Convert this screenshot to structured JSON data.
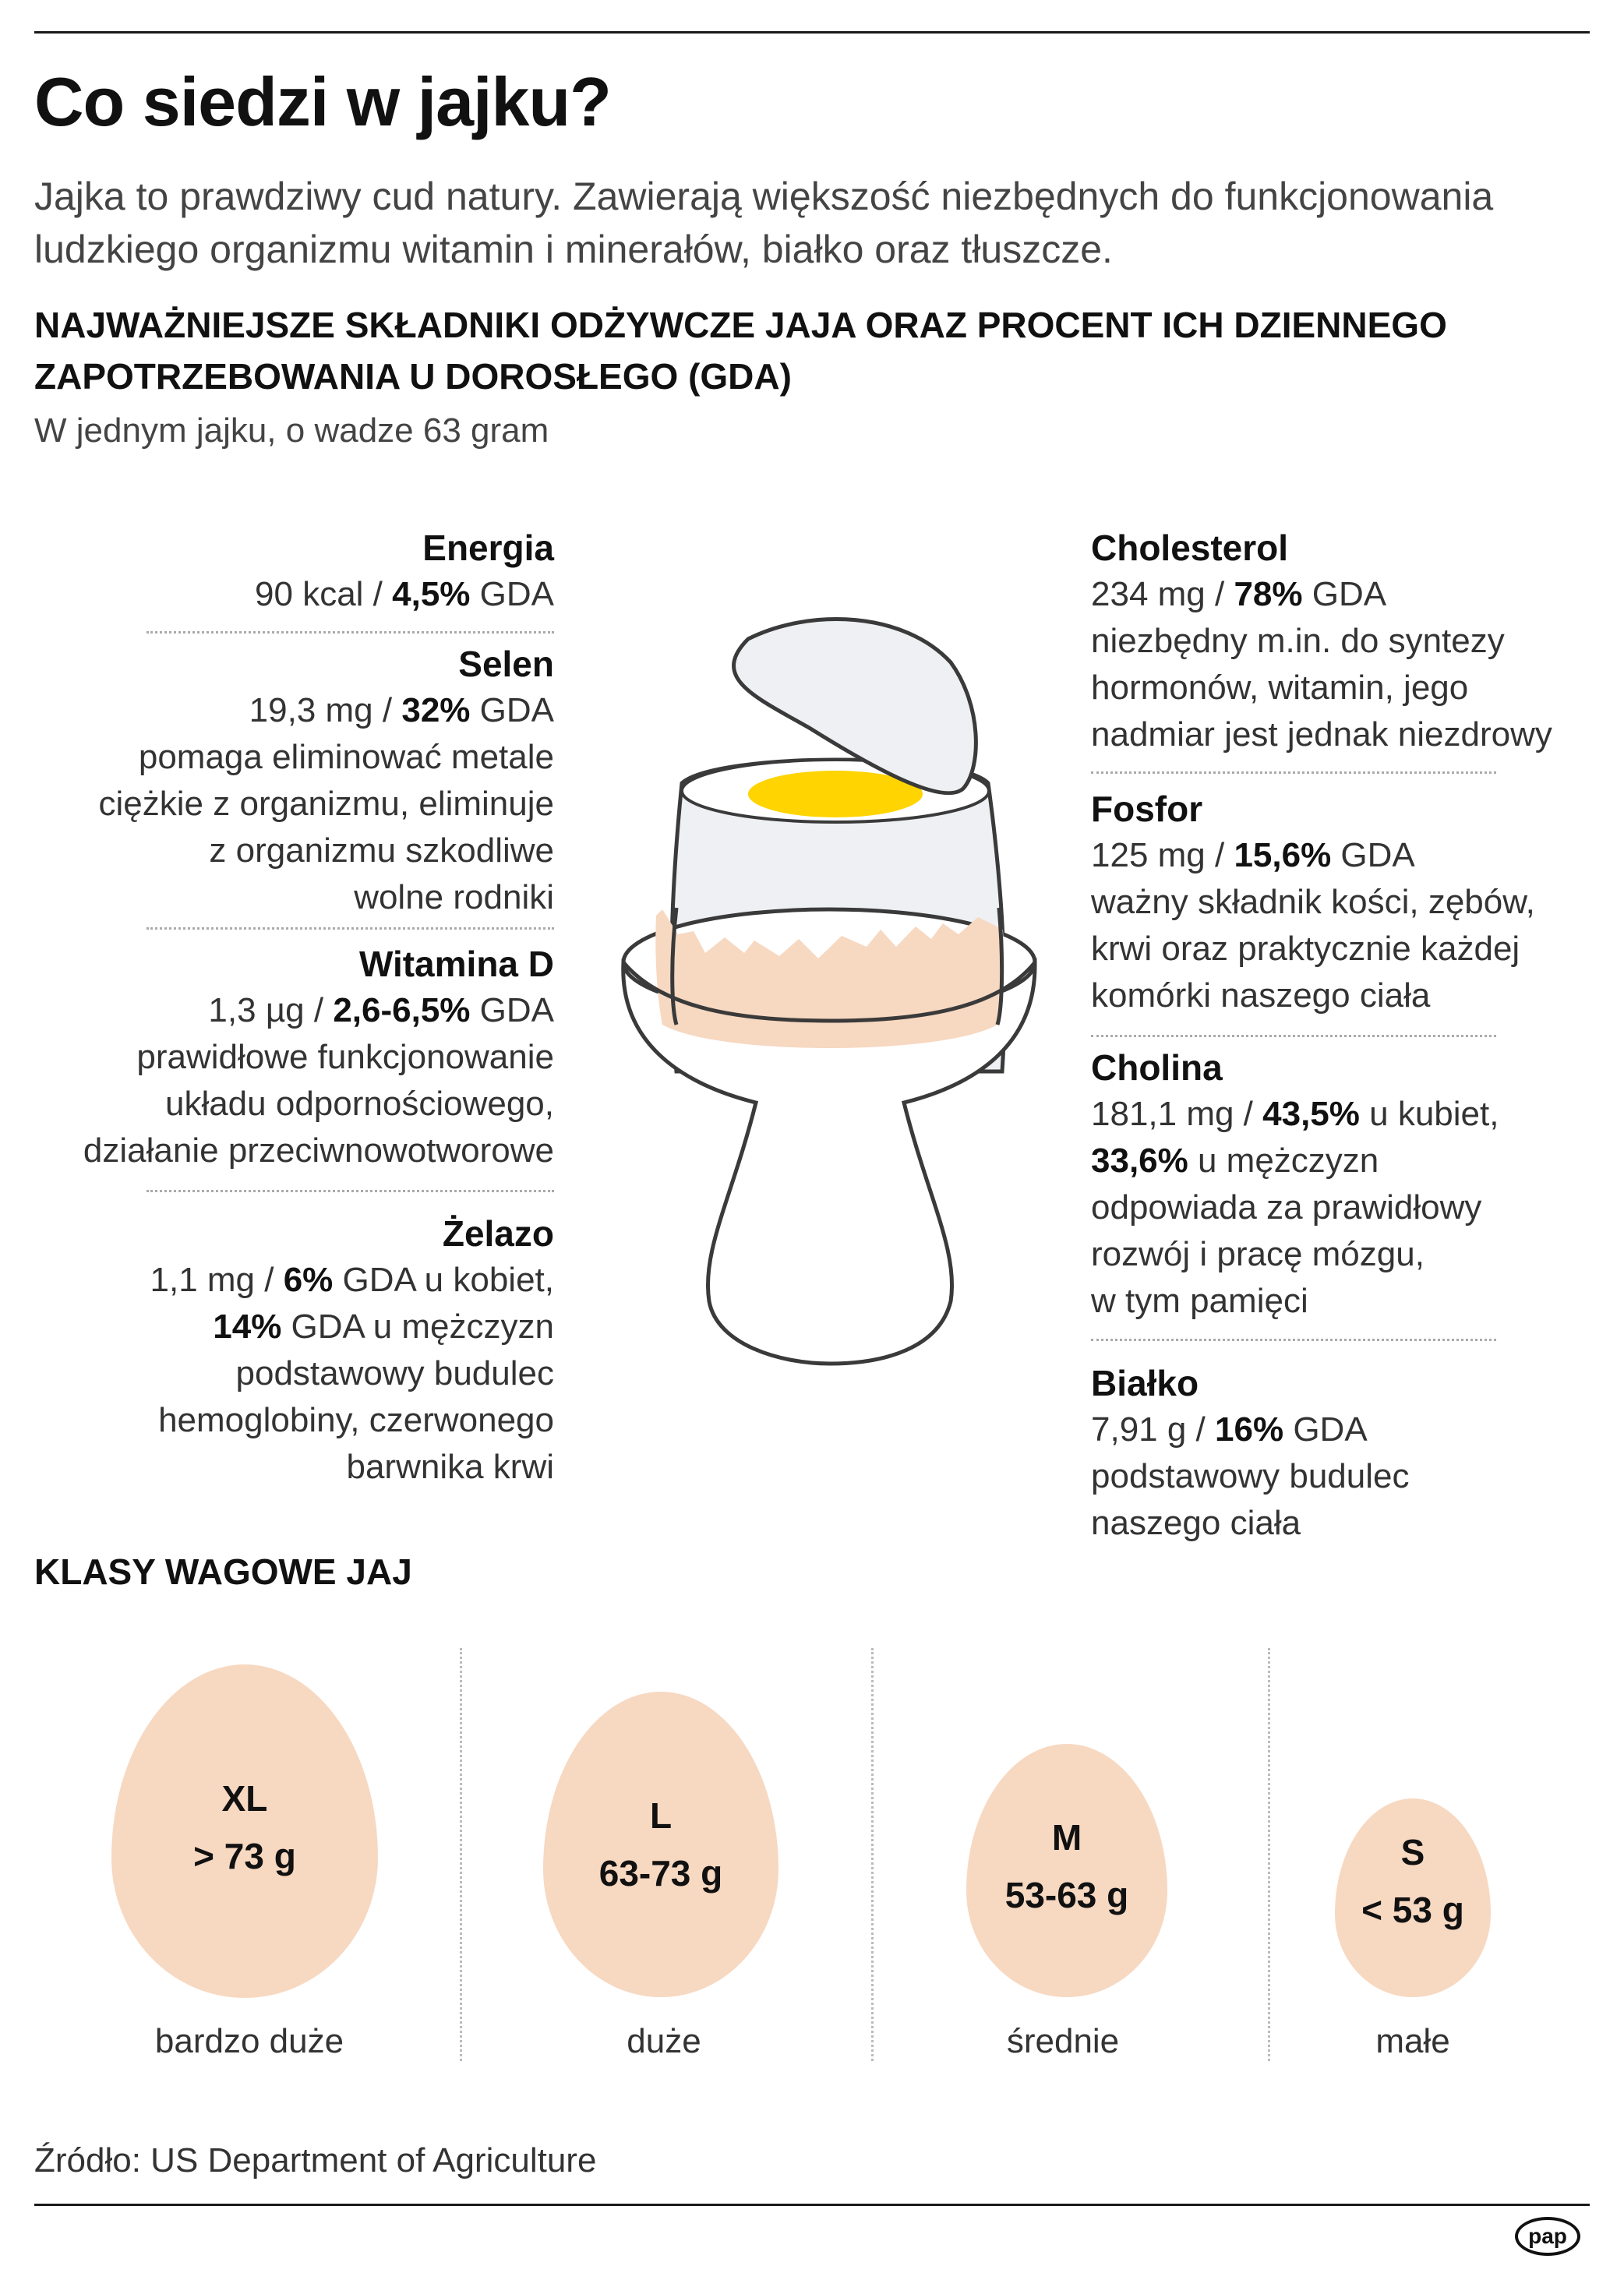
{
  "title": "Co siedzi w jajku?",
  "intro": "Jajka to prawdziwy cud natury. Zawierają większość niezbędnych do funkcjonowania ludzkiego organizmu witamin i minerałów, białko oraz tłuszcze.",
  "subheading": {
    "line1": "NAJWAŻNIEJSZE SKŁADNIKI ODŻYWCZE JAJA ORAZ PROCENT ICH DZIENNEGO",
    "line2": "ZAPOTRZEBOWANIA U DOROSŁEGO (GDA)"
  },
  "unit_note": "W jednym jajku, o wadze 63 gram",
  "nutrients_left": {
    "energia": {
      "name": "Energia",
      "amount": "90 kcal / ",
      "pct": "4,5%",
      "suffix": " GDA"
    },
    "selen": {
      "name": "Selen",
      "amount": "19,3 mg / ",
      "pct": "32%",
      "suffix": " GDA",
      "desc": [
        "pomaga eliminować metale",
        "ciężkie z organizmu, eliminuje",
        "z organizmu szkodliwe",
        "wolne rodniki"
      ]
    },
    "witamina_d": {
      "name": "Witamina D",
      "amount": "1,3 µg / ",
      "pct": "2,6-6,5%",
      "suffix": " GDA",
      "desc": [
        "prawidłowe funkcjonowanie",
        "układu odpornościowego,",
        "działanie przeciwnowotworowe"
      ]
    },
    "zelazo": {
      "name": "Żelazo",
      "amount": "1,1 mg / ",
      "pct": "6%",
      "suffix": " GDA u kobiet,",
      "pct2": "14%",
      "suffix2": " GDA u mężczyzn",
      "desc": [
        "podstawowy budulec",
        "hemoglobiny, czerwonego",
        "barwnika krwi"
      ]
    }
  },
  "nutrients_right": {
    "cholesterol": {
      "name": "Cholesterol",
      "amount": "234 mg / ",
      "pct": "78%",
      "suffix": " GDA",
      "desc": [
        "niezbędny m.in. do syntezy",
        "hormonów, witamin, jego",
        "nadmiar jest jednak niezdrowy"
      ]
    },
    "fosfor": {
      "name": "Fosfor",
      "amount": "125 mg / ",
      "pct": "15,6%",
      "suffix": " GDA",
      "desc": [
        "ważny składnik kości, zębów,",
        "krwi oraz praktycznie każdej",
        "komórki naszego ciała"
      ]
    },
    "cholina": {
      "name": "Cholina",
      "amount": "181,1 mg / ",
      "pct": "43,5%",
      "suffix": " u kubiet,",
      "pct2": "33,6%",
      "suffix2": " u mężczyzn",
      "desc": [
        "odpowiada za prawidłowy",
        "rozwój i pracę mózgu,",
        "w tym pamięci"
      ]
    },
    "bialko": {
      "name": "Białko",
      "amount": "7,91 g / ",
      "pct": "16%",
      "suffix": " GDA",
      "desc": [
        "podstawowy budulec",
        "naszego ciała"
      ]
    }
  },
  "weight_classes": {
    "title": "KLASY WAGOWE JAJ",
    "items": [
      {
        "code": "XL",
        "weight": "> 73 g",
        "label": "bardzo duże"
      },
      {
        "code": "L",
        "weight": "63-73 g",
        "label": "duże"
      },
      {
        "code": "M",
        "weight": "53-63 g",
        "label": "średnie"
      },
      {
        "code": "S",
        "weight": "< 53 g",
        "label": "małe"
      }
    ]
  },
  "source": "Źródło: US Department of Agriculture",
  "logo": "pap",
  "colors": {
    "yolk": "#ffd400",
    "shell": "#f7d8c1",
    "egg_white": "#eef0f3",
    "cup": "#ffffff",
    "text": "#1a1a1a"
  }
}
